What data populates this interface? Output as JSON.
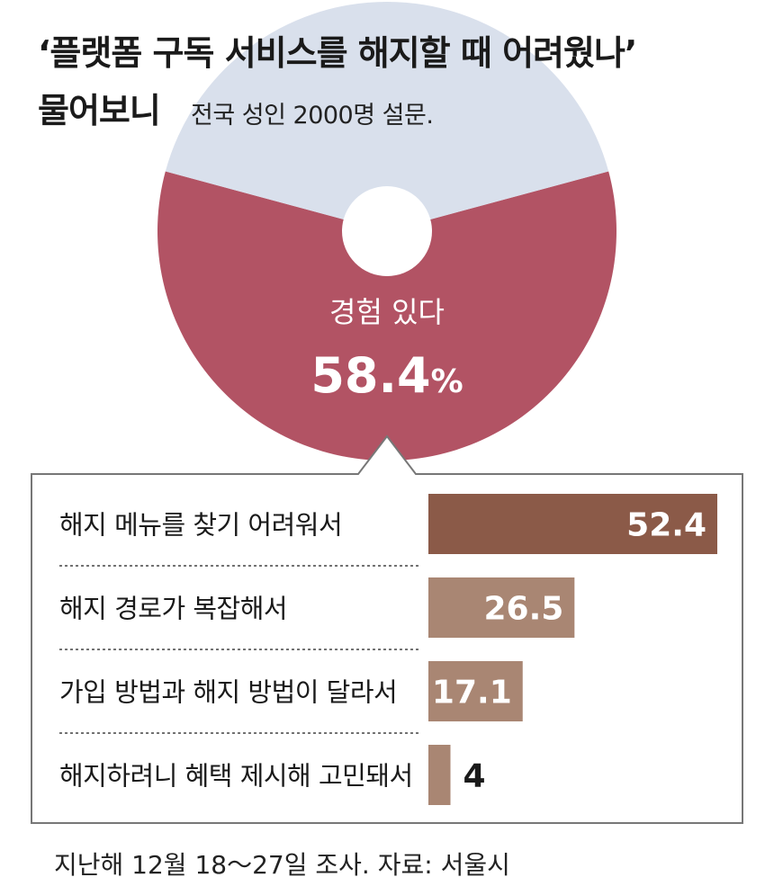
{
  "title_line1": "‘플랫폼 구독 서비스를 해지할 때 어려웠나’",
  "title_line2": "물어보니",
  "subtitle": "전국 성인 2000명 설문.",
  "pie": {
    "slices": [
      {
        "label": "경험 있다",
        "value": 58.4,
        "color": "#b25364"
      },
      {
        "label": "",
        "value": 41.6,
        "color": "#d9e0ec"
      }
    ],
    "main_label": "경험 있다",
    "main_value": "58.4",
    "unit": "%"
  },
  "chart_data": {
    "type": "bar",
    "categories": [
      "해지 메뉴를 찾기 어려워서",
      "해지 경로가 복잡해서",
      "가입 방법과 해지 방법이 달라서",
      "해지하려니 혜택 제시해 고민돼서"
    ],
    "values": [
      52.4,
      26.5,
      17.1,
      4
    ],
    "value_labels": [
      "52.4",
      "26.5",
      "17.1",
      "4"
    ],
    "colors": [
      "#8b5a48",
      "#a98673",
      "#a98673",
      "#a98673"
    ],
    "xlim": [
      0,
      52.4
    ]
  },
  "footer": "지난해 12월 18～27일 조사. 자료: 서울시"
}
